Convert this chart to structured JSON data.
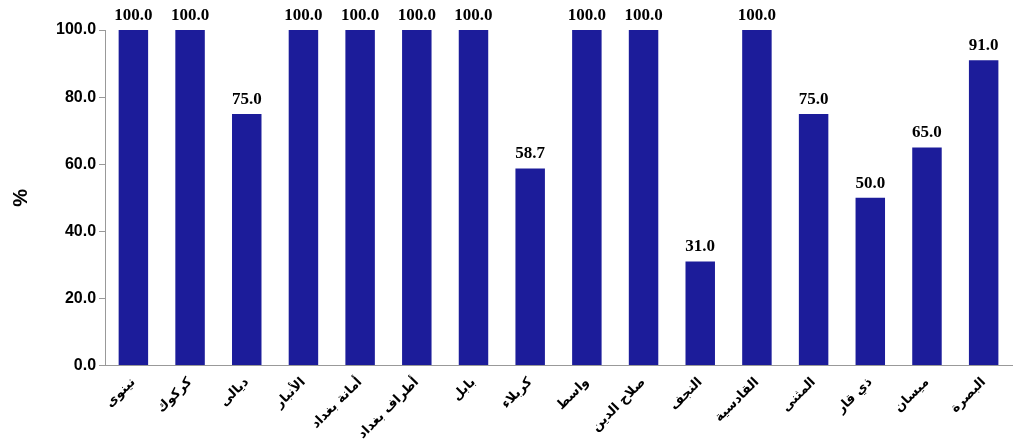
{
  "chart_data": {
    "type": "bar",
    "ylabel": "%",
    "categories": [
      "نينوى",
      "كركوك",
      "ديالى",
      "الأنبار",
      "أمانة بغداد",
      "أطراف بغداد",
      "بابل",
      "كربلاء",
      "واسط",
      "صلاح الدين",
      "النجف",
      "القادسية",
      "المثنى",
      "ذي قار",
      "ميسان",
      "البصرة"
    ],
    "values": [
      100,
      100,
      75,
      100,
      100,
      100,
      100,
      58.7,
      100,
      100,
      31,
      100,
      75,
      50,
      65,
      91
    ],
    "value_labels": [
      "100.0",
      "100.0",
      "75.0",
      "100.0",
      "100.0",
      "100.0",
      "100.0",
      "58.7",
      "100.0",
      "100.0",
      "31.0",
      "100.0",
      "75.0",
      "50.0",
      "65.0",
      "91.0"
    ],
    "color": "#1c1c9a",
    "ylim": [
      0,
      100
    ],
    "yticks": [
      {
        "value": 0,
        "label": "0.0"
      },
      {
        "value": 20,
        "label": "20.0"
      },
      {
        "value": 40,
        "label": "40.0"
      },
      {
        "value": 60,
        "label": "60.0"
      },
      {
        "value": 80,
        "label": "80.0"
      },
      {
        "value": 100,
        "label": "100.0"
      }
    ],
    "grid": false,
    "legend": false
  }
}
